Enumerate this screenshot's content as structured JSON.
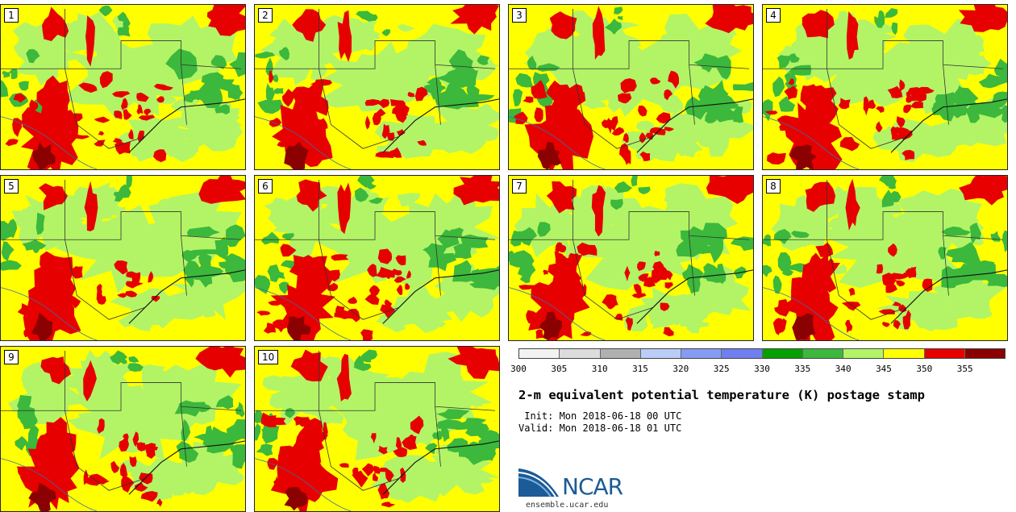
{
  "members": [
    {
      "label": "1"
    },
    {
      "label": "2"
    },
    {
      "label": "3"
    },
    {
      "label": "4"
    },
    {
      "label": "5"
    },
    {
      "label": "6"
    },
    {
      "label": "7"
    },
    {
      "label": "8"
    },
    {
      "label": "9"
    },
    {
      "label": "10"
    }
  ],
  "colorbar": {
    "ticks": [
      "300",
      "305",
      "310",
      "315",
      "320",
      "325",
      "330",
      "335",
      "340",
      "345",
      "350",
      "355"
    ],
    "colors": [
      "#f2f2f2",
      "#dcdcdc",
      "#b0b0b0",
      "#b9cdf7",
      "#869cf3",
      "#6f7ff0",
      "#06a000",
      "#3cb83c",
      "#b2f466",
      "#ffff00",
      "#e60000",
      "#8b0000"
    ]
  },
  "title": "2-m equivalent potential temperature (K) postage stamp",
  "init_line": " Init: Mon 2018-06-18 00 UTC",
  "valid_line": "Valid: Mon 2018-06-18 01 UTC",
  "logo": {
    "word": "NCAR",
    "url": "ensemble.ucar.edu"
  },
  "map_colors": {
    "background": "#ffff00",
    "light_green": "#b2f466",
    "green": "#3cb83c",
    "dark_green": "#06a000",
    "red": "#e60000",
    "dark_red": "#8b0000",
    "boundary": "#333333"
  }
}
